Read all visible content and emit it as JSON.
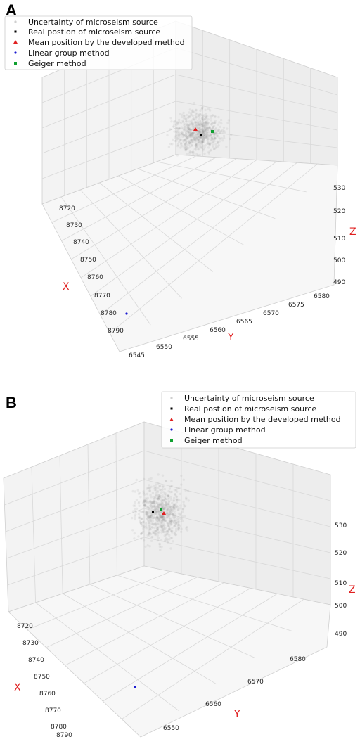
{
  "chart_data": [
    {
      "panel": "A",
      "type": "scatter",
      "axis_labels": {
        "x": "X",
        "y": "Y",
        "z": "Z"
      },
      "x_ticks": [
        "8720",
        "8730",
        "8740",
        "8750",
        "8760",
        "8770",
        "8780",
        "8790"
      ],
      "y_ticks": [
        "6545",
        "6550",
        "6555",
        "6560",
        "6565",
        "6570",
        "6575",
        "6580"
      ],
      "z_ticks": [
        "490",
        "500",
        "510",
        "520",
        "530"
      ],
      "legend": [
        {
          "label": "Uncertainty of microseism source",
          "marker": "dot",
          "color": "#cfcfcf"
        },
        {
          "label": "Real postion of microseism source",
          "marker": "square",
          "color": "#000000"
        },
        {
          "label": "Mean position by the developed method",
          "marker": "triangle",
          "color": "#e02020"
        },
        {
          "label": "Linear group method",
          "marker": "dot",
          "color": "#1a1ad0"
        },
        {
          "label": "Geiger method",
          "marker": "square",
          "color": "#10a030"
        }
      ]
    },
    {
      "panel": "B",
      "type": "scatter",
      "axis_labels": {
        "x": "X",
        "y": "Y",
        "z": "Z"
      },
      "x_ticks": [
        "8720",
        "8730",
        "8740",
        "8750",
        "8760",
        "8770",
        "8780",
        "8790"
      ],
      "y_ticks": [
        "6550",
        "6560",
        "6570",
        "6580"
      ],
      "z_ticks": [
        "490",
        "500",
        "510",
        "520",
        "530"
      ],
      "legend": [
        {
          "label": "Uncertainty of microseism source",
          "marker": "dot",
          "color": "#cfcfcf"
        },
        {
          "label": "Real postion of microseism source",
          "marker": "square",
          "color": "#000000"
        },
        {
          "label": "Mean position by the developed method",
          "marker": "triangle",
          "color": "#e02020"
        },
        {
          "label": "Linear group method",
          "marker": "dot",
          "color": "#1a1ad0"
        },
        {
          "label": "Geiger method",
          "marker": "square",
          "color": "#10a030"
        }
      ]
    }
  ]
}
